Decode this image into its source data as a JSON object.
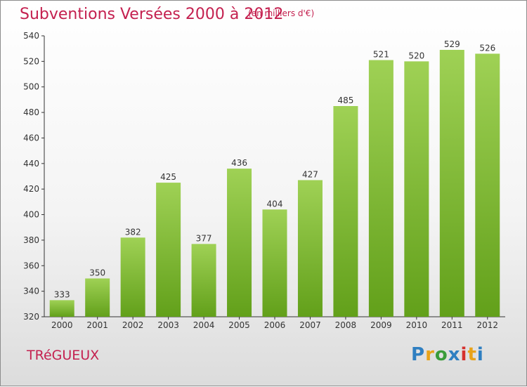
{
  "header": {
    "title": "Subventions Versées 2000 à 2012",
    "unit_note": "(en milliers d'€)"
  },
  "footer": {
    "town": "TRéGUEUX",
    "logo_text": "Proxiti",
    "logo_colors": [
      "#2f7fc1",
      "#e8a31a",
      "#3a9c3a",
      "#2f7fc1",
      "#d5312e",
      "#e8a31a",
      "#2f7fc1"
    ]
  },
  "colors": {
    "accent": "#c4204f",
    "bar_top": "#9fd155",
    "bar_bottom": "#62a01a",
    "axis": "#333333",
    "grid": "#c8c8c8"
  },
  "chart_data": {
    "type": "bar",
    "title": "Subventions Versées 2000 à 2012",
    "subtitle": "(en milliers d'€)",
    "categories": [
      "2000",
      "2001",
      "2002",
      "2003",
      "2004",
      "2005",
      "2006",
      "2007",
      "2008",
      "2009",
      "2010",
      "2011",
      "2012"
    ],
    "values": [
      333,
      350,
      382,
      425,
      377,
      436,
      404,
      427,
      485,
      521,
      520,
      529,
      526
    ],
    "ylim": [
      320,
      540
    ],
    "yticks": [
      320,
      340,
      360,
      380,
      400,
      420,
      440,
      460,
      480,
      500,
      520,
      540
    ],
    "grid": false,
    "data_labels": true
  }
}
